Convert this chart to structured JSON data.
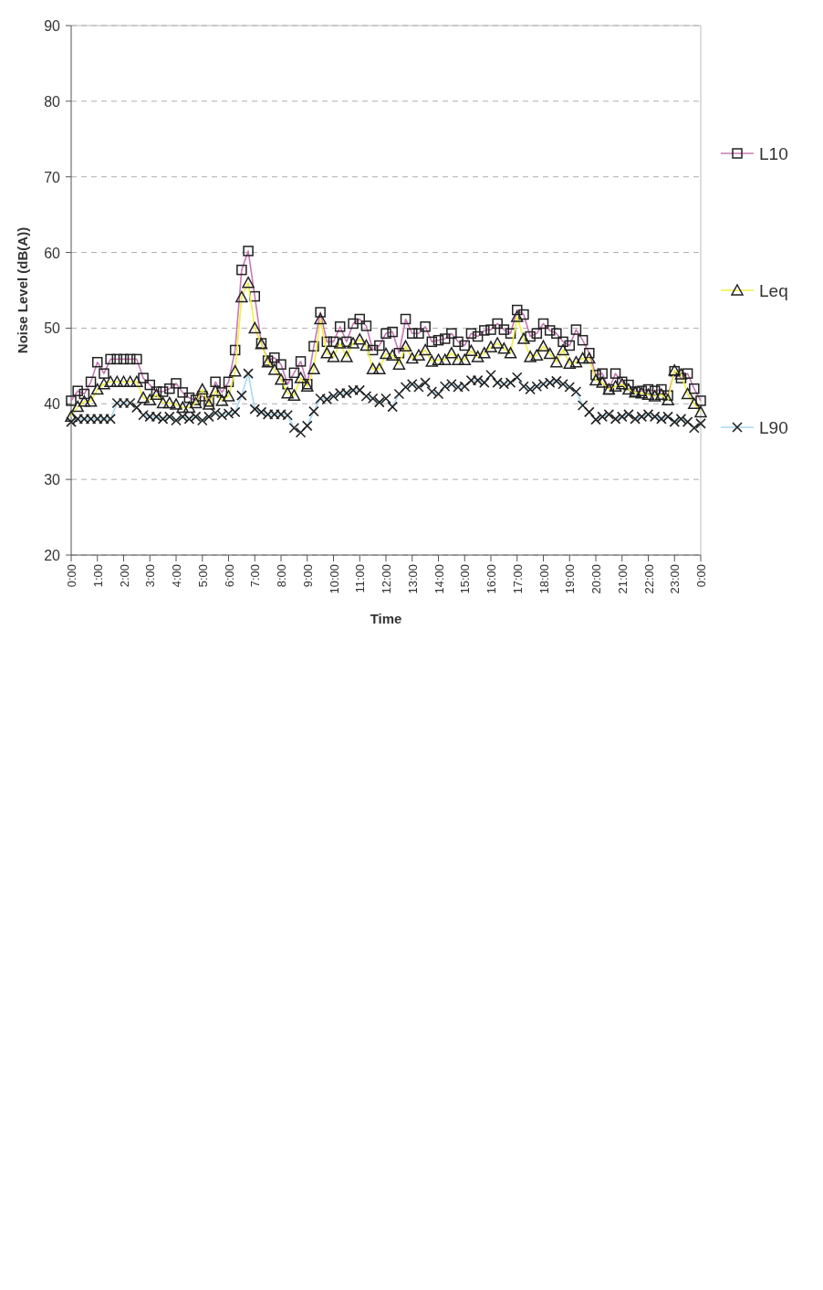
{
  "chart_data": {
    "type": "line",
    "xlabel": "Time",
    "ylabel": "Noise Level (dB(A))",
    "x": [
      0,
      0.25,
      0.5,
      0.75,
      1,
      1.25,
      1.5,
      1.75,
      2,
      2.25,
      2.5,
      2.75,
      3,
      3.25,
      3.5,
      3.75,
      4,
      4.25,
      4.5,
      4.75,
      5,
      5.25,
      5.5,
      5.75,
      6,
      6.25,
      6.5,
      6.75,
      7,
      7.25,
      7.5,
      7.75,
      8,
      8.25,
      8.5,
      8.75,
      9,
      9.25,
      9.5,
      9.75,
      10,
      10.25,
      10.5,
      10.75,
      11,
      11.25,
      11.5,
      11.75,
      12,
      12.25,
      12.5,
      12.75,
      13,
      13.25,
      13.5,
      13.75,
      14,
      14.25,
      14.5,
      14.75,
      15,
      15.25,
      15.5,
      15.75,
      16,
      16.25,
      16.5,
      16.75,
      17,
      17.25,
      17.5,
      17.75,
      18,
      18.25,
      18.5,
      18.75,
      19,
      19.25,
      19.5,
      19.75,
      20,
      20.25,
      20.5,
      20.75,
      21,
      21.25,
      21.5,
      21.75,
      22,
      22.25,
      22.5,
      22.75,
      23,
      23.25,
      23.5,
      23.75,
      24
    ],
    "series": [
      {
        "name": "L10",
        "color": "#c878b4",
        "marker": "square",
        "values": [
          40.4,
          41.7,
          41.3,
          42.9,
          45.5,
          44.0,
          45.9,
          45.9,
          45.9,
          45.9,
          45.9,
          43.4,
          42.5,
          41.6,
          41.6,
          42.0,
          42.7,
          41.5,
          40.8,
          40.5,
          41.0,
          40.3,
          42.9,
          41.5,
          42.9,
          47.1,
          57.7,
          60.2,
          54.2,
          48.0,
          45.7,
          46.1,
          45.2,
          42.6,
          44.1,
          45.6,
          42.6,
          47.6,
          52.1,
          48.2,
          48.2,
          50.2,
          48.2,
          50.6,
          51.2,
          50.3,
          47.1,
          47.7,
          49.3,
          49.5,
          46.7,
          51.2,
          49.3,
          49.3,
          50.2,
          48.2,
          48.4,
          48.6,
          49.3,
          48.2,
          47.7,
          49.3,
          48.9,
          49.7,
          49.8,
          50.6,
          49.8,
          49.3,
          52.4,
          51.8,
          48.9,
          49.3,
          50.6,
          49.7,
          49.3,
          48.2,
          47.7,
          49.8,
          48.4,
          46.7,
          43.8,
          44.0,
          41.9,
          44.0,
          42.9,
          42.5,
          41.6,
          41.7,
          41.9,
          41.7,
          41.9,
          41.1,
          44.3,
          43.4,
          44.0,
          42.0,
          40.4
        ]
      },
      {
        "name": "Leq",
        "color": "#f0f040",
        "marker": "triangle",
        "values": [
          38.3,
          39.6,
          40.3,
          40.3,
          41.9,
          42.6,
          42.9,
          42.9,
          42.9,
          42.9,
          42.9,
          40.8,
          40.5,
          41.2,
          40.1,
          40.1,
          39.9,
          39.5,
          39.5,
          40.1,
          41.9,
          39.9,
          41.7,
          40.4,
          41.0,
          44.3,
          54.1,
          56.0,
          50.0,
          47.9,
          45.5,
          44.5,
          43.2,
          41.4,
          41.1,
          43.4,
          42.3,
          44.6,
          51.2,
          46.7,
          46.2,
          48.0,
          46.2,
          48.0,
          48.5,
          47.7,
          44.6,
          44.6,
          46.6,
          46.4,
          45.2,
          47.6,
          46.0,
          46.4,
          47.1,
          45.6,
          45.8,
          45.8,
          46.7,
          45.8,
          45.8,
          47.0,
          46.2,
          46.7,
          47.5,
          48.0,
          47.3,
          46.7,
          51.5,
          48.6,
          46.2,
          46.4,
          47.6,
          46.6,
          45.5,
          47.1,
          45.3,
          45.5,
          46.0,
          46.0,
          43.1,
          42.8,
          41.9,
          42.3,
          42.6,
          41.9,
          41.5,
          41.4,
          41.2,
          41.0,
          41.2,
          40.5,
          44.4,
          43.9,
          41.3,
          40.0,
          38.9
        ]
      },
      {
        "name": "L90",
        "color": "#a8d8f0",
        "marker": "cross",
        "values": [
          37.6,
          38.0,
          38.0,
          38.0,
          38.0,
          38.0,
          38.0,
          40.1,
          40.1,
          40.1,
          39.5,
          38.5,
          38.3,
          38.3,
          38.0,
          38.3,
          37.8,
          38.3,
          38.0,
          38.3,
          37.8,
          38.3,
          38.8,
          38.5,
          38.7,
          38.9,
          41.1,
          44.0,
          39.3,
          38.9,
          38.6,
          38.6,
          38.6,
          38.5,
          36.8,
          36.2,
          37.1,
          39.0,
          40.7,
          40.6,
          41.0,
          41.4,
          41.4,
          41.8,
          41.8,
          41.0,
          40.7,
          40.2,
          40.7,
          39.6,
          41.3,
          42.2,
          42.6,
          42.2,
          42.8,
          41.6,
          41.3,
          42.3,
          42.6,
          42.2,
          42.3,
          43.1,
          43.1,
          42.8,
          43.8,
          42.8,
          42.6,
          42.8,
          43.5,
          42.3,
          41.9,
          42.3,
          42.6,
          42.8,
          43.0,
          42.6,
          42.2,
          41.6,
          39.8,
          38.9,
          37.9,
          38.3,
          38.6,
          38.0,
          38.3,
          38.6,
          38.0,
          38.3,
          38.6,
          38.3,
          38.0,
          38.3,
          37.6,
          38.0,
          37.6,
          36.8,
          37.4
        ]
      }
    ],
    "xlim": [
      0,
      24
    ],
    "xticks": [
      {
        "value": 0,
        "label": "0:00"
      },
      {
        "value": 1,
        "label": "1:00"
      },
      {
        "value": 2,
        "label": "2:00"
      },
      {
        "value": 3,
        "label": "3:00"
      },
      {
        "value": 4,
        "label": "4:00"
      },
      {
        "value": 5,
        "label": "5:00"
      },
      {
        "value": 6,
        "label": "6:00"
      },
      {
        "value": 7,
        "label": "7:00"
      },
      {
        "value": 8,
        "label": "8:00"
      },
      {
        "value": 9,
        "label": "9:00"
      },
      {
        "value": 10,
        "label": "10:00"
      },
      {
        "value": 11,
        "label": "11:00"
      },
      {
        "value": 12,
        "label": "12:00"
      },
      {
        "value": 13,
        "label": "13:00"
      },
      {
        "value": 14,
        "label": "14:00"
      },
      {
        "value": 15,
        "label": "15:00"
      },
      {
        "value": 16,
        "label": "16:00"
      },
      {
        "value": 17,
        "label": "17:00"
      },
      {
        "value": 18,
        "label": "18:00"
      },
      {
        "value": 19,
        "label": "19:00"
      },
      {
        "value": 20,
        "label": "20:00"
      },
      {
        "value": 21,
        "label": "21:00"
      },
      {
        "value": 22,
        "label": "22:00"
      },
      {
        "value": 23,
        "label": "23:00"
      },
      {
        "value": 24,
        "label": "0:00"
      }
    ],
    "ylim": [
      20,
      90
    ],
    "yticks": [
      20,
      30,
      40,
      50,
      60,
      70,
      80,
      90
    ],
    "grid": "y",
    "legend": "right",
    "line_style": "solid"
  }
}
